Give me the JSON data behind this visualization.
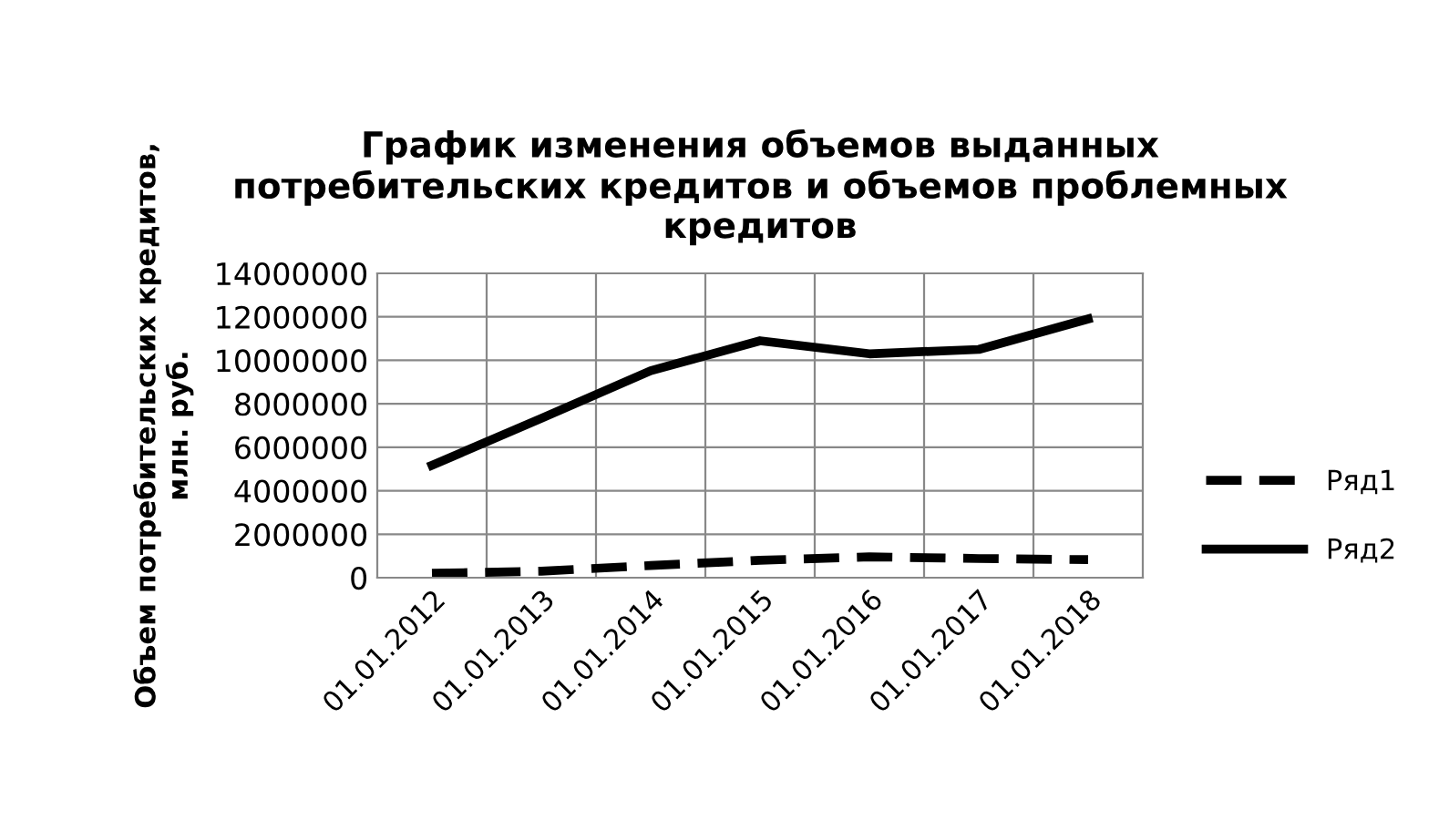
{
  "chart_data": {
    "type": "line",
    "title": "График изменения объемов выданных\nпотребительских кредитов и объемов проблемных\nкредитов",
    "ylabel": "Объем потребительских кредитов,\nмлн. руб.",
    "categories": [
      "01.01.2012",
      "01.01.2013",
      "01.01.2014",
      "01.01.2015",
      "01.01.2016",
      "01.01.2017",
      "01.01.2018"
    ],
    "series": [
      {
        "name": "Ряд1",
        "color": "#000000",
        "line_style": "dashed",
        "values": [
          200000,
          300000,
          560000,
          800000,
          960000,
          880000,
          830000
        ]
      },
      {
        "name": "Ряд2",
        "color": "#000000",
        "line_style": "solid",
        "values": [
          5170000,
          7330000,
          9520000,
          10900000,
          10300000,
          10500000,
          11900000
        ]
      }
    ],
    "ylim": [
      0,
      14000000
    ],
    "yticks": [
      0,
      2000000,
      4000000,
      6000000,
      8000000,
      10000000,
      12000000,
      14000000
    ],
    "grid": true,
    "legend": "right",
    "marker": "none"
  }
}
